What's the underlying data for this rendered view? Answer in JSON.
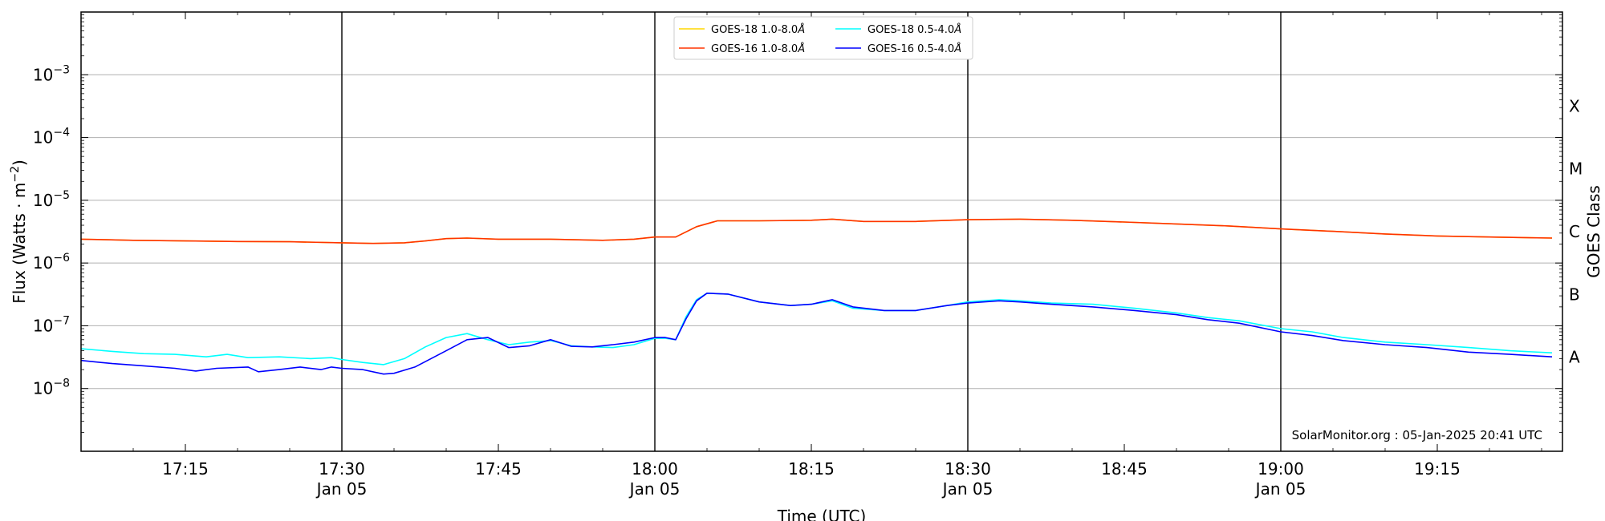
{
  "chart_data": {
    "type": "line",
    "xlabel": "Time (UTC)",
    "ylabel": "Flux (Watts · m",
    "ylabel_sup": "−2",
    "ylabel_close": ")",
    "ylabel_right": "GOES Class",
    "y_scale": "log",
    "ylim": [
      1e-09,
      0.01
    ],
    "xlim": [
      "17:05",
      "19:27"
    ],
    "grid": "horizontal",
    "legend_position": "top-center",
    "x_ticks": [
      {
        "t": "17:15",
        "label": "17:15",
        "date": ""
      },
      {
        "t": "17:30",
        "label": "17:30",
        "date": "Jan 05"
      },
      {
        "t": "17:45",
        "label": "17:45",
        "date": ""
      },
      {
        "t": "18:00",
        "label": "18:00",
        "date": "Jan 05"
      },
      {
        "t": "18:15",
        "label": "18:15",
        "date": ""
      },
      {
        "t": "18:30",
        "label": "18:30",
        "date": "Jan 05"
      },
      {
        "t": "18:45",
        "label": "18:45",
        "date": ""
      },
      {
        "t": "19:00",
        "label": "19:00",
        "date": "Jan 05"
      },
      {
        "t": "19:15",
        "label": "19:15",
        "date": ""
      }
    ],
    "day_lines": [
      "17:30",
      "18:00",
      "18:30",
      "19:00"
    ],
    "y_ticks": [
      {
        "v": 1e-08,
        "base": "10",
        "exp": "−8"
      },
      {
        "v": 1e-07,
        "base": "10",
        "exp": "−7"
      },
      {
        "v": 1e-06,
        "base": "10",
        "exp": "−6"
      },
      {
        "v": 1e-05,
        "base": "10",
        "exp": "−5"
      },
      {
        "v": 0.0001,
        "base": "10",
        "exp": "−4"
      },
      {
        "v": 0.001,
        "base": "10",
        "exp": "−3"
      }
    ],
    "goes_classes": [
      {
        "label": "A",
        "v": 1e-08
      },
      {
        "label": "B",
        "v": 1e-07
      },
      {
        "label": "C",
        "v": 1e-06
      },
      {
        "label": "M",
        "v": 1e-05
      },
      {
        "label": "X",
        "v": 0.0001
      }
    ],
    "series": [
      {
        "name": "GOES-18 1.0-8.0",
        "name_unit": "Å",
        "color": "#ffd700",
        "points": [
          [
            "17:05",
            2.4e-06
          ],
          [
            "17:10",
            2.3e-06
          ],
          [
            "17:15",
            2.25e-06
          ],
          [
            "17:20",
            2.2e-06
          ],
          [
            "17:25",
            2.18e-06
          ],
          [
            "17:30",
            2.1e-06
          ],
          [
            "17:33",
            2.05e-06
          ],
          [
            "17:36",
            2.1e-06
          ],
          [
            "17:38",
            2.25e-06
          ],
          [
            "17:40",
            2.45e-06
          ],
          [
            "17:42",
            2.5e-06
          ],
          [
            "17:45",
            2.4e-06
          ],
          [
            "17:50",
            2.4e-06
          ],
          [
            "17:55",
            2.3e-06
          ],
          [
            "17:58",
            2.4e-06
          ],
          [
            "18:00",
            2.6e-06
          ],
          [
            "18:02",
            2.6e-06
          ],
          [
            "18:04",
            3.8e-06
          ],
          [
            "18:06",
            4.7e-06
          ],
          [
            "18:10",
            4.7e-06
          ],
          [
            "18:15",
            4.8e-06
          ],
          [
            "18:17",
            5e-06
          ],
          [
            "18:20",
            4.6e-06
          ],
          [
            "18:25",
            4.6e-06
          ],
          [
            "18:30",
            4.9e-06
          ],
          [
            "18:35",
            5e-06
          ],
          [
            "18:40",
            4.8e-06
          ],
          [
            "18:45",
            4.5e-06
          ],
          [
            "18:50",
            4.2e-06
          ],
          [
            "18:55",
            3.9e-06
          ],
          [
            "19:00",
            3.5e-06
          ],
          [
            "19:05",
            3.2e-06
          ],
          [
            "19:10",
            2.9e-06
          ],
          [
            "19:15",
            2.7e-06
          ],
          [
            "19:20",
            2.6e-06
          ],
          [
            "19:26",
            2.5e-06
          ]
        ]
      },
      {
        "name": "GOES-16 1.0-8.0",
        "name_unit": "Å",
        "color": "#ff3300",
        "points": [
          [
            "17:05",
            2.4e-06
          ],
          [
            "17:10",
            2.3e-06
          ],
          [
            "17:15",
            2.25e-06
          ],
          [
            "17:20",
            2.2e-06
          ],
          [
            "17:25",
            2.18e-06
          ],
          [
            "17:30",
            2.1e-06
          ],
          [
            "17:33",
            2.05e-06
          ],
          [
            "17:36",
            2.1e-06
          ],
          [
            "17:38",
            2.25e-06
          ],
          [
            "17:40",
            2.45e-06
          ],
          [
            "17:42",
            2.5e-06
          ],
          [
            "17:45",
            2.4e-06
          ],
          [
            "17:50",
            2.4e-06
          ],
          [
            "17:55",
            2.3e-06
          ],
          [
            "17:58",
            2.4e-06
          ],
          [
            "18:00",
            2.6e-06
          ],
          [
            "18:02",
            2.6e-06
          ],
          [
            "18:04",
            3.8e-06
          ],
          [
            "18:06",
            4.7e-06
          ],
          [
            "18:10",
            4.7e-06
          ],
          [
            "18:15",
            4.8e-06
          ],
          [
            "18:17",
            5e-06
          ],
          [
            "18:20",
            4.6e-06
          ],
          [
            "18:25",
            4.6e-06
          ],
          [
            "18:30",
            4.9e-06
          ],
          [
            "18:35",
            5e-06
          ],
          [
            "18:40",
            4.8e-06
          ],
          [
            "18:45",
            4.5e-06
          ],
          [
            "18:50",
            4.2e-06
          ],
          [
            "18:55",
            3.9e-06
          ],
          [
            "19:00",
            3.5e-06
          ],
          [
            "19:05",
            3.2e-06
          ],
          [
            "19:10",
            2.9e-06
          ],
          [
            "19:15",
            2.7e-06
          ],
          [
            "19:20",
            2.6e-06
          ],
          [
            "19:26",
            2.5e-06
          ]
        ]
      },
      {
        "name": "GOES-18 0.5-4.0",
        "name_unit": "Å",
        "color": "#00ffff",
        "points": [
          [
            "17:05",
            4.3e-08
          ],
          [
            "17:08",
            3.9e-08
          ],
          [
            "17:11",
            3.6e-08
          ],
          [
            "17:14",
            3.5e-08
          ],
          [
            "17:17",
            3.2e-08
          ],
          [
            "17:19",
            3.5e-08
          ],
          [
            "17:21",
            3.1e-08
          ],
          [
            "17:24",
            3.2e-08
          ],
          [
            "17:27",
            3e-08
          ],
          [
            "17:29",
            3.1e-08
          ],
          [
            "17:30",
            2.9e-08
          ],
          [
            "17:32",
            2.6e-08
          ],
          [
            "17:34",
            2.4e-08
          ],
          [
            "17:36",
            3e-08
          ],
          [
            "17:38",
            4.6e-08
          ],
          [
            "17:40",
            6.5e-08
          ],
          [
            "17:42",
            7.5e-08
          ],
          [
            "17:44",
            6e-08
          ],
          [
            "17:46",
            5e-08
          ],
          [
            "17:48",
            5.5e-08
          ],
          [
            "17:50",
            5.8e-08
          ],
          [
            "17:52",
            4.8e-08
          ],
          [
            "17:54",
            4.6e-08
          ],
          [
            "17:56",
            4.5e-08
          ],
          [
            "17:58",
            5e-08
          ],
          [
            "18:00",
            6.3e-08
          ],
          [
            "18:01",
            6.3e-08
          ],
          [
            "18:02",
            6e-08
          ],
          [
            "18:03",
            1.4e-07
          ],
          [
            "18:04",
            2.6e-07
          ],
          [
            "18:05",
            3.3e-07
          ],
          [
            "18:07",
            3.2e-07
          ],
          [
            "18:10",
            2.4e-07
          ],
          [
            "18:13",
            2.1e-07
          ],
          [
            "18:15",
            2.2e-07
          ],
          [
            "18:17",
            2.5e-07
          ],
          [
            "18:19",
            1.9e-07
          ],
          [
            "18:22",
            1.75e-07
          ],
          [
            "18:25",
            1.75e-07
          ],
          [
            "18:28",
            2.1e-07
          ],
          [
            "18:30",
            2.4e-07
          ],
          [
            "18:33",
            2.6e-07
          ],
          [
            "18:35",
            2.5e-07
          ],
          [
            "18:38",
            2.3e-07
          ],
          [
            "18:42",
            2.2e-07
          ],
          [
            "18:46",
            1.9e-07
          ],
          [
            "18:50",
            1.6e-07
          ],
          [
            "18:53",
            1.35e-07
          ],
          [
            "18:56",
            1.2e-07
          ],
          [
            "19:00",
            9e-08
          ],
          [
            "19:03",
            8e-08
          ],
          [
            "19:06",
            6.5e-08
          ],
          [
            "19:10",
            5.5e-08
          ],
          [
            "19:14",
            5e-08
          ],
          [
            "19:18",
            4.5e-08
          ],
          [
            "19:22",
            4e-08
          ],
          [
            "19:26",
            3.7e-08
          ]
        ]
      },
      {
        "name": "GOES-16 0.5-4.0",
        "name_unit": "Å",
        "color": "#0000ff",
        "points": [
          [
            "17:05",
            2.8e-08
          ],
          [
            "17:08",
            2.5e-08
          ],
          [
            "17:11",
            2.3e-08
          ],
          [
            "17:14",
            2.1e-08
          ],
          [
            "17:16",
            1.9e-08
          ],
          [
            "17:18",
            2.1e-08
          ],
          [
            "17:21",
            2.2e-08
          ],
          [
            "17:22",
            1.85e-08
          ],
          [
            "17:24",
            2e-08
          ],
          [
            "17:26",
            2.2e-08
          ],
          [
            "17:28",
            2e-08
          ],
          [
            "17:29",
            2.2e-08
          ],
          [
            "17:30",
            2.1e-08
          ],
          [
            "17:32",
            2e-08
          ],
          [
            "17:34",
            1.7e-08
          ],
          [
            "17:35",
            1.75e-08
          ],
          [
            "17:37",
            2.2e-08
          ],
          [
            "17:40",
            4e-08
          ],
          [
            "17:42",
            6e-08
          ],
          [
            "17:44",
            6.5e-08
          ],
          [
            "17:46",
            4.5e-08
          ],
          [
            "17:48",
            4.8e-08
          ],
          [
            "17:50",
            6e-08
          ],
          [
            "17:52",
            4.7e-08
          ],
          [
            "17:54",
            4.6e-08
          ],
          [
            "17:56",
            5e-08
          ],
          [
            "17:58",
            5.5e-08
          ],
          [
            "18:00",
            6.5e-08
          ],
          [
            "18:01",
            6.5e-08
          ],
          [
            "18:02",
            6e-08
          ],
          [
            "18:03",
            1.3e-07
          ],
          [
            "18:04",
            2.5e-07
          ],
          [
            "18:05",
            3.3e-07
          ],
          [
            "18:07",
            3.2e-07
          ],
          [
            "18:10",
            2.4e-07
          ],
          [
            "18:13",
            2.1e-07
          ],
          [
            "18:15",
            2.2e-07
          ],
          [
            "18:17",
            2.6e-07
          ],
          [
            "18:19",
            2e-07
          ],
          [
            "18:22",
            1.75e-07
          ],
          [
            "18:25",
            1.75e-07
          ],
          [
            "18:28",
            2.1e-07
          ],
          [
            "18:30",
            2.3e-07
          ],
          [
            "18:33",
            2.5e-07
          ],
          [
            "18:35",
            2.4e-07
          ],
          [
            "18:38",
            2.2e-07
          ],
          [
            "18:42",
            2e-07
          ],
          [
            "18:46",
            1.75e-07
          ],
          [
            "18:50",
            1.5e-07
          ],
          [
            "18:53",
            1.25e-07
          ],
          [
            "18:56",
            1.1e-07
          ],
          [
            "19:00",
            8e-08
          ],
          [
            "19:03",
            7e-08
          ],
          [
            "19:06",
            5.8e-08
          ],
          [
            "19:10",
            5e-08
          ],
          [
            "19:14",
            4.5e-08
          ],
          [
            "19:18",
            3.8e-08
          ],
          [
            "19:22",
            3.5e-08
          ],
          [
            "19:26",
            3.2e-08
          ]
        ]
      }
    ],
    "legend_layout": [
      [
        0,
        2
      ],
      [
        1,
        3
      ]
    ],
    "credit": "SolarMonitor.org : 05-Jan-2025 20:41 UTC"
  }
}
